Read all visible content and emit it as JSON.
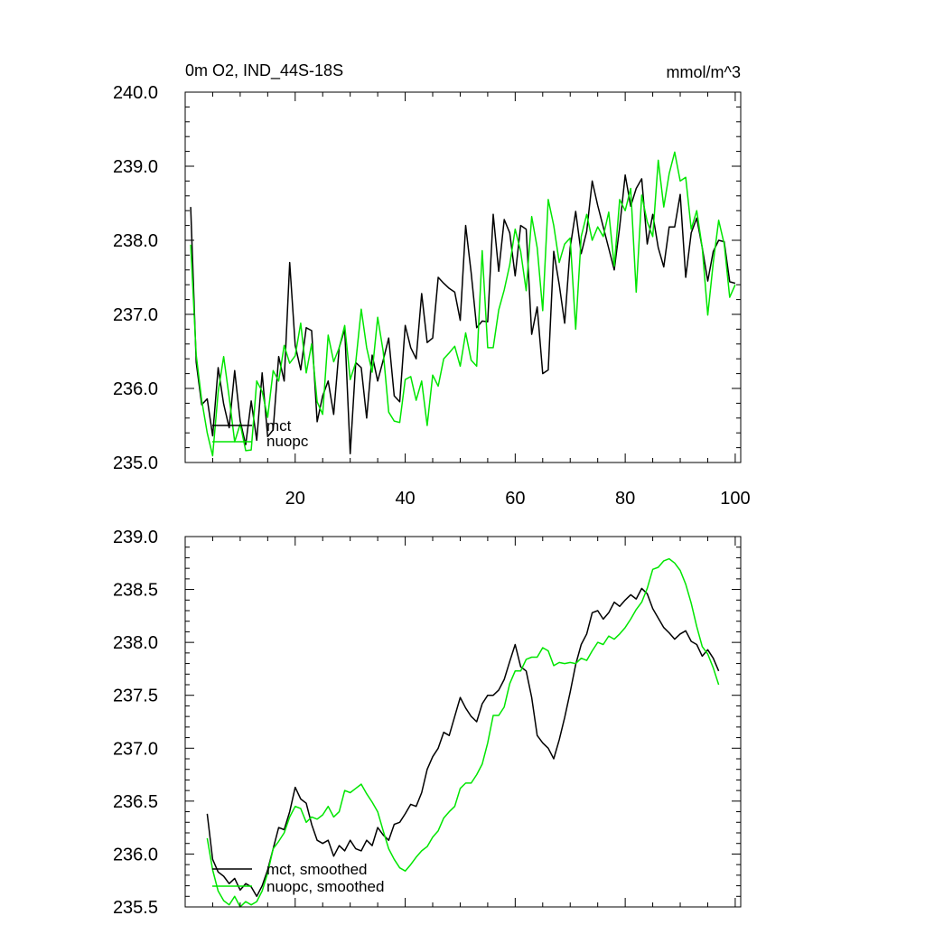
{
  "chart_data": [
    {
      "type": "line",
      "title": "0m O2, IND_44S-18S",
      "units_label": "mmol/m^3",
      "xlim": [
        0,
        101
      ],
      "ylim": [
        235.0,
        240.0
      ],
      "xticks": [
        20,
        40,
        60,
        80,
        100
      ],
      "xtick_labels": [
        "20",
        "40",
        "60",
        "80",
        "100"
      ],
      "yticks": [
        235.0,
        236.0,
        237.0,
        238.0,
        239.0,
        240.0
      ],
      "ytick_labels": [
        "235.0",
        "236.0",
        "237.0",
        "238.0",
        "239.0",
        "240.0"
      ],
      "legend_position": "bottom-left",
      "series": [
        {
          "name": "mct",
          "color": "#000000",
          "x_start": 1,
          "values": [
            238.45,
            236.35,
            235.78,
            235.86,
            235.36,
            236.28,
            235.79,
            235.47,
            236.24,
            235.56,
            235.24,
            235.83,
            235.3,
            236.21,
            235.35,
            235.44,
            236.43,
            236.1,
            237.7,
            236.58,
            236.25,
            236.82,
            236.78,
            235.55,
            235.9,
            236.1,
            235.65,
            236.55,
            236.8,
            235.12,
            236.35,
            236.28,
            235.6,
            236.45,
            236.1,
            236.38,
            236.68,
            235.9,
            235.82,
            236.85,
            236.55,
            236.4,
            237.28,
            236.62,
            236.68,
            237.5,
            237.42,
            237.35,
            237.3,
            236.92,
            238.2,
            237.56,
            236.82,
            236.91,
            236.9,
            238.35,
            237.58,
            238.28,
            238.1,
            237.52,
            238.2,
            238.15,
            236.73,
            237.1,
            236.2,
            236.25,
            237.85,
            237.4,
            236.88,
            237.9,
            238.39,
            237.82,
            238.12,
            238.8,
            238.47,
            238.18,
            237.89,
            237.6,
            238.18,
            238.88,
            238.46,
            238.7,
            238.83,
            237.95,
            238.35,
            237.9,
            237.64,
            238.18,
            238.18,
            238.62,
            237.5,
            238.1,
            238.3,
            237.9,
            237.45,
            237.85,
            238.0,
            237.98,
            237.44,
            237.42
          ]
        },
        {
          "name": "nuopc",
          "color": "#00e600",
          "x_start": 1,
          "values": [
            237.94,
            236.45,
            235.84,
            235.4,
            235.09,
            235.95,
            236.43,
            235.88,
            235.28,
            235.52,
            235.16,
            235.17,
            236.1,
            235.96,
            235.61,
            236.24,
            236.1,
            236.58,
            236.34,
            236.44,
            236.88,
            236.21,
            236.6,
            235.82,
            235.65,
            236.72,
            236.36,
            236.55,
            236.85,
            236.12,
            236.35,
            237.07,
            236.55,
            236.22,
            236.96,
            236.5,
            235.68,
            235.56,
            235.54,
            236.12,
            236.16,
            235.84,
            236.1,
            235.5,
            236.18,
            236.03,
            236.4,
            236.48,
            236.57,
            236.3,
            236.75,
            236.38,
            236.3,
            237.86,
            236.55,
            236.55,
            237.06,
            237.33,
            237.67,
            238.15,
            237.85,
            237.32,
            238.32,
            237.9,
            237.05,
            238.55,
            238.2,
            237.7,
            237.95,
            238.03,
            236.8,
            238.05,
            238.35,
            238.0,
            238.18,
            238.05,
            238.38,
            237.65,
            238.55,
            238.4,
            238.7,
            237.3,
            238.61,
            238.25,
            238.05,
            239.08,
            238.45,
            238.9,
            239.19,
            238.8,
            238.85,
            238.15,
            238.4,
            237.9,
            236.99,
            237.7,
            238.27,
            237.95,
            237.23,
            237.4
          ]
        }
      ]
    },
    {
      "type": "line",
      "title": "",
      "xlim": [
        0,
        101
      ],
      "ylim": [
        235.5,
        239.0
      ],
      "xticks": [
        20,
        40,
        60,
        80,
        100
      ],
      "xtick_labels": [],
      "yticks": [
        235.5,
        236.0,
        236.5,
        237.0,
        237.5,
        238.0,
        238.5,
        239.0
      ],
      "ytick_labels": [
        "235.5",
        "236.0",
        "236.5",
        "237.0",
        "237.5",
        "238.0",
        "238.5",
        "239.0"
      ],
      "legend_position": "bottom-left",
      "series": [
        {
          "name": "mct, smoothed",
          "color": "#000000",
          "x_start": 4,
          "values": [
            236.38,
            235.95,
            235.83,
            235.79,
            235.72,
            235.77,
            235.66,
            235.72,
            235.69,
            235.6,
            235.7,
            235.85,
            236.05,
            236.25,
            236.23,
            236.4,
            236.63,
            236.52,
            236.48,
            236.28,
            236.13,
            236.1,
            236.13,
            235.98,
            236.08,
            236.03,
            236.13,
            236.05,
            236.03,
            236.13,
            236.08,
            236.25,
            236.18,
            236.13,
            236.28,
            236.3,
            236.38,
            236.47,
            236.45,
            236.58,
            236.8,
            236.92,
            237.0,
            237.15,
            237.12,
            237.3,
            237.48,
            237.38,
            237.3,
            237.25,
            237.42,
            237.5,
            237.5,
            237.55,
            237.65,
            237.82,
            237.98,
            237.77,
            237.73,
            237.48,
            237.12,
            237.05,
            237.0,
            236.9,
            237.08,
            237.29,
            237.53,
            237.79,
            237.98,
            238.08,
            238.28,
            238.3,
            238.22,
            238.28,
            238.38,
            238.34,
            238.4,
            238.45,
            238.41,
            238.51,
            238.46,
            238.32,
            238.23,
            238.14,
            238.09,
            238.03,
            238.08,
            238.11,
            238.01,
            237.98,
            237.87,
            237.93,
            237.85,
            237.73
          ]
        },
        {
          "name": "nuopc, smoothed",
          "color": "#00e600",
          "x_start": 4,
          "values": [
            236.15,
            235.85,
            235.65,
            235.56,
            235.52,
            235.6,
            235.5,
            235.55,
            235.52,
            235.55,
            235.65,
            235.82,
            236.05,
            236.12,
            236.2,
            236.35,
            236.45,
            236.43,
            236.3,
            236.35,
            236.33,
            236.37,
            236.45,
            236.35,
            236.4,
            236.6,
            236.58,
            236.62,
            236.66,
            236.57,
            236.49,
            236.4,
            236.22,
            236.05,
            235.95,
            235.87,
            235.84,
            235.9,
            235.97,
            236.03,
            236.07,
            236.16,
            236.22,
            236.34,
            236.4,
            236.45,
            236.62,
            236.67,
            236.67,
            236.75,
            236.85,
            237.05,
            237.31,
            237.31,
            237.39,
            237.61,
            237.73,
            237.73,
            237.84,
            237.86,
            237.86,
            237.95,
            237.92,
            237.78,
            237.81,
            237.8,
            237.81,
            237.8,
            237.85,
            237.83,
            237.92,
            238.0,
            237.98,
            238.06,
            238.03,
            238.08,
            238.14,
            238.22,
            238.31,
            238.38,
            238.51,
            238.69,
            238.71,
            238.77,
            238.79,
            238.75,
            238.68,
            238.55,
            238.37,
            238.15,
            237.96,
            237.89,
            237.76,
            237.6
          ]
        }
      ]
    }
  ]
}
